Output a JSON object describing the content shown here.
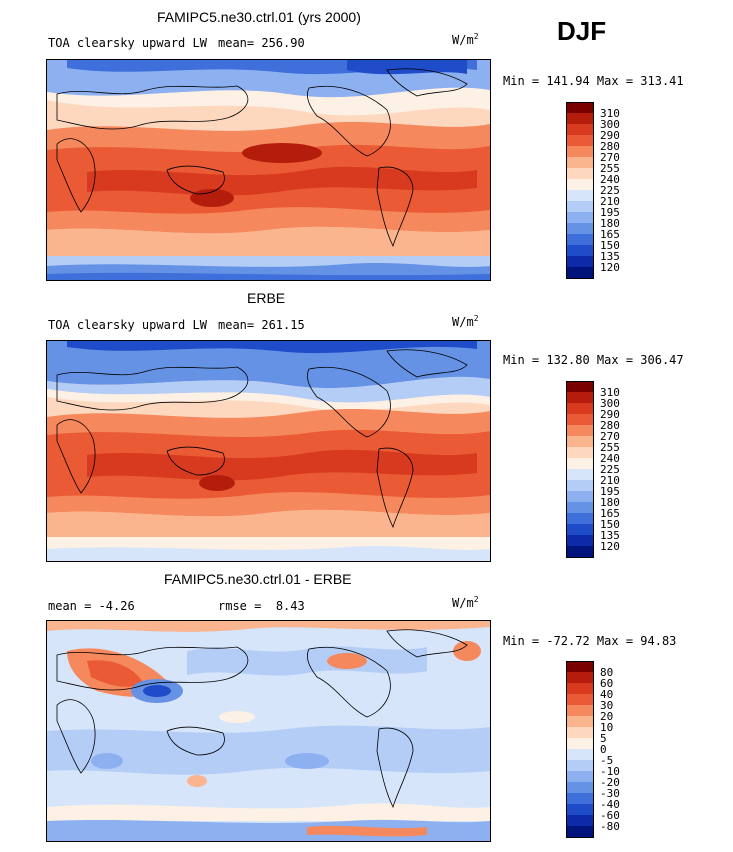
{
  "season": "DJF",
  "panels": [
    {
      "title": "FAMIPC5.ne30.ctrl.01 (yrs 2000)",
      "left_label": "TOA clearsky upward LW",
      "stat_label": "mean=",
      "stat_value": "256.90",
      "unit_base": "W/m",
      "unit_exp": "2",
      "minmax": "Min = 141.94 Max = 313.41",
      "levels": [
        "310",
        "300",
        "290",
        "280",
        "270",
        "255",
        "240",
        "225",
        "210",
        "195",
        "180",
        "165",
        "150",
        "135",
        "120"
      ],
      "colors": [
        "#7a0000",
        "#b41d0c",
        "#d73a1e",
        "#ea5a34",
        "#f5885c",
        "#fab48e",
        "#fdd8bf",
        "#fdf0e5",
        "#d7e5fb",
        "#b3cdf6",
        "#8db1f0",
        "#6692e6",
        "#3e6fda",
        "#1f4cc8",
        "#0d2aa8",
        "#00137a"
      ],
      "map_style": "full"
    },
    {
      "title": "ERBE",
      "left_label": "TOA clearsky upward LW",
      "stat_label": "mean=",
      "stat_value": "261.15",
      "unit_base": "W/m",
      "unit_exp": "2",
      "minmax": "Min = 132.80 Max = 306.47",
      "levels": [
        "310",
        "300",
        "290",
        "280",
        "270",
        "255",
        "240",
        "225",
        "210",
        "195",
        "180",
        "165",
        "150",
        "135",
        "120"
      ],
      "colors": [
        "#7a0000",
        "#b41d0c",
        "#d73a1e",
        "#ea5a34",
        "#f5885c",
        "#fab48e",
        "#fdd8bf",
        "#fdf0e5",
        "#d7e5fb",
        "#b3cdf6",
        "#8db1f0",
        "#6692e6",
        "#3e6fda",
        "#1f4cc8",
        "#0d2aa8",
        "#00137a"
      ],
      "map_style": "full"
    },
    {
      "title": "FAMIPC5.ne30.ctrl.01 - ERBE",
      "left_label": "mean =   -4.26",
      "stat_label": "rmse =",
      "stat_value": "8.43",
      "unit_base": "W/m",
      "unit_exp": "2",
      "minmax": "Min = -72.72 Max =  94.83",
      "levels": [
        "80",
        "60",
        "40",
        "30",
        "20",
        "10",
        "5",
        "0",
        "-5",
        "-10",
        "-20",
        "-30",
        "-40",
        "-60",
        "-80"
      ],
      "colors": [
        "#7a0000",
        "#b41d0c",
        "#d73a1e",
        "#ea5a34",
        "#f5885c",
        "#fab48e",
        "#fdd8bf",
        "#fdf0e5",
        "#d7e5fb",
        "#b3cdf6",
        "#8db1f0",
        "#6692e6",
        "#3e6fda",
        "#1f4cc8",
        "#0d2aa8",
        "#00137a"
      ],
      "map_style": "diff"
    }
  ]
}
